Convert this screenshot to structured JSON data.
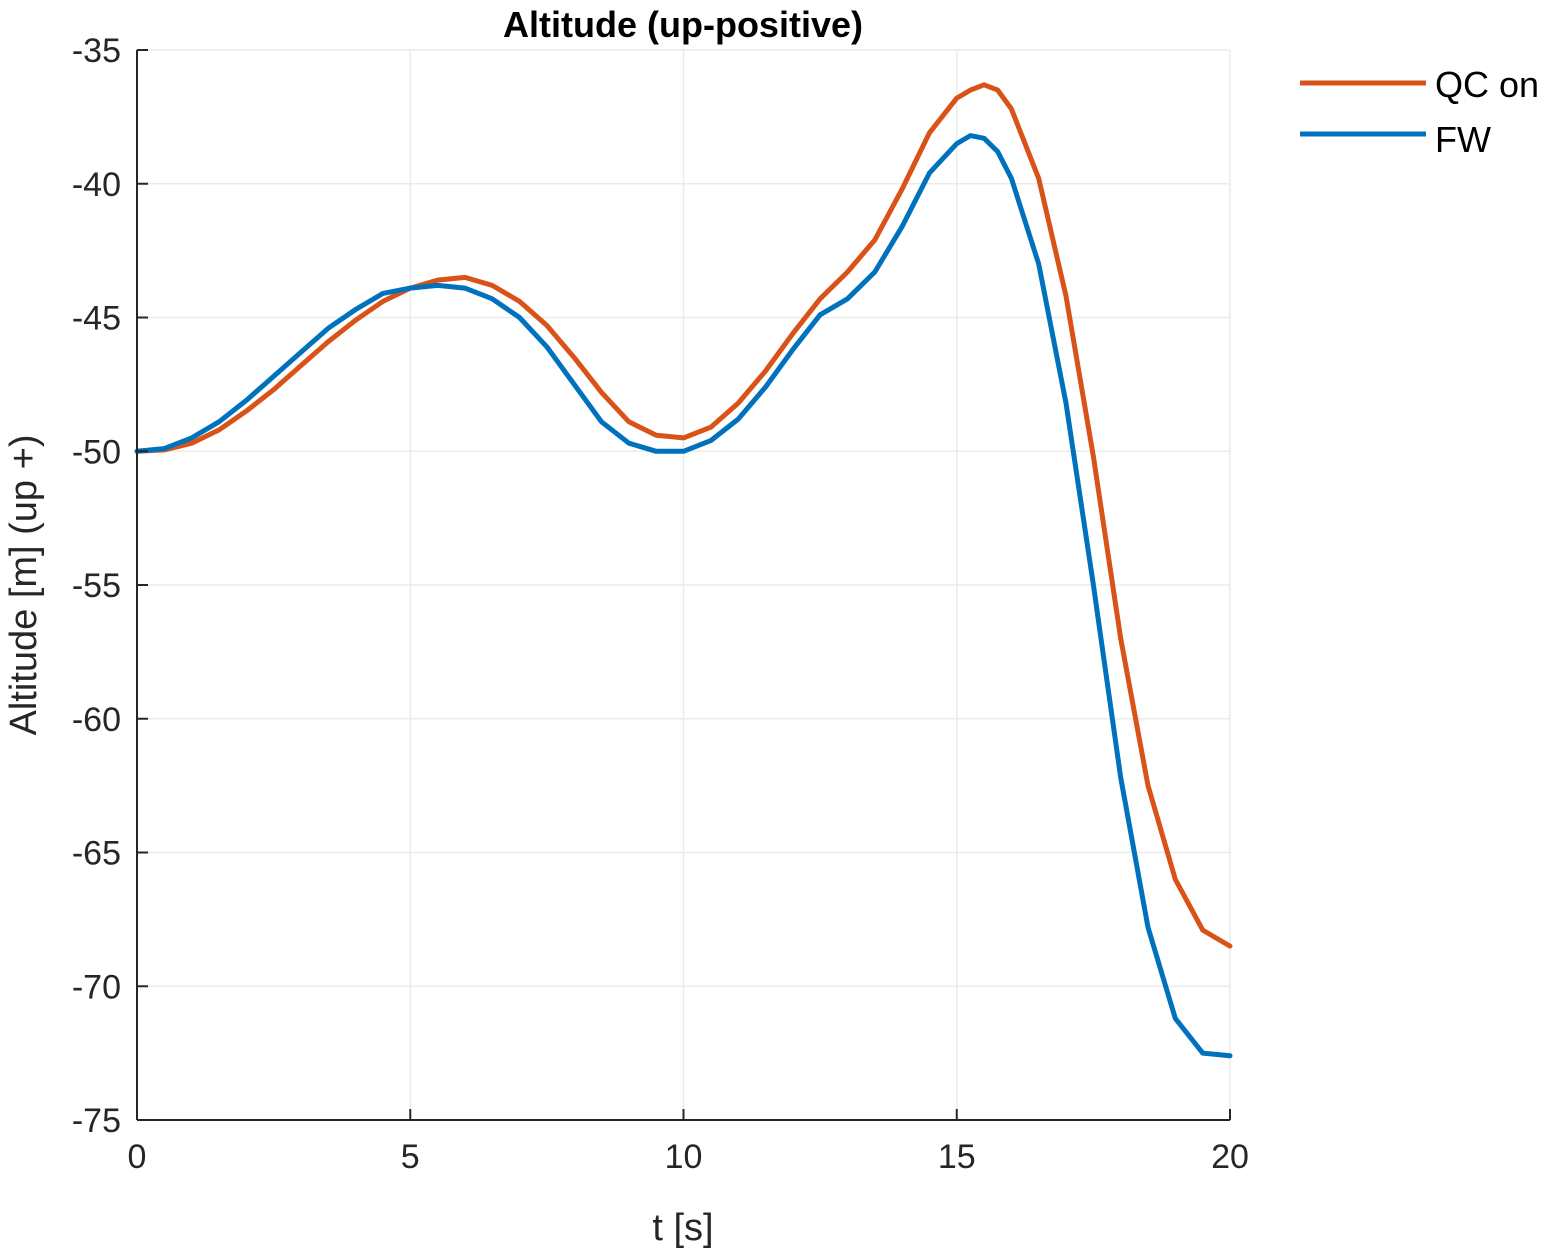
{
  "chart_data": {
    "type": "line",
    "title": "Altitude (up-positive)",
    "xlabel": "t [s]",
    "ylabel": "Altitude [m] (up +)",
    "xlim": [
      0,
      20
    ],
    "ylim": [
      -75,
      -35
    ],
    "xticks": [
      0,
      5,
      10,
      15,
      20
    ],
    "yticks": [
      -35,
      -40,
      -45,
      -50,
      -55,
      -60,
      -65,
      -70,
      -75
    ],
    "grid": true,
    "legend_position": "top-right, outside axes",
    "series": [
      {
        "name": "QC on",
        "color": "#D95319",
        "x": [
          0,
          0.5,
          1,
          1.5,
          2,
          2.5,
          3,
          3.5,
          4,
          4.5,
          5,
          5.5,
          6,
          6.5,
          7,
          7.5,
          8,
          8.5,
          9,
          9.5,
          10,
          10.5,
          11,
          11.5,
          12,
          12.5,
          13,
          13.5,
          14,
          14.5,
          15,
          15.25,
          15.5,
          15.75,
          16,
          16.5,
          17,
          17.5,
          18,
          18.5,
          19,
          19.5,
          20
        ],
        "y": [
          -50,
          -49.95,
          -49.7,
          -49.2,
          -48.5,
          -47.7,
          -46.8,
          -45.9,
          -45.1,
          -44.4,
          -43.9,
          -43.6,
          -43.5,
          -43.8,
          -44.4,
          -45.3,
          -46.5,
          -47.8,
          -48.9,
          -49.4,
          -49.5,
          -49.1,
          -48.2,
          -47.0,
          -45.6,
          -44.3,
          -43.3,
          -42.1,
          -40.2,
          -38.1,
          -36.8,
          -36.5,
          -36.3,
          -36.5,
          -37.2,
          -39.8,
          -44.2,
          -50.2,
          -57.0,
          -62.5,
          -66.0,
          -67.9,
          -68.5
        ]
      },
      {
        "name": "FW",
        "color": "#0072BD",
        "x": [
          0,
          0.5,
          1,
          1.5,
          2,
          2.5,
          3,
          3.5,
          4,
          4.5,
          5,
          5.5,
          6,
          6.5,
          7,
          7.5,
          8,
          8.5,
          9,
          9.5,
          10,
          10.5,
          11,
          11.5,
          12,
          12.5,
          13,
          13.5,
          14,
          14.5,
          15,
          15.25,
          15.5,
          15.75,
          16,
          16.5,
          17,
          17.5,
          18,
          18.5,
          19,
          19.5,
          20
        ],
        "y": [
          -50,
          -49.9,
          -49.5,
          -48.9,
          -48.1,
          -47.2,
          -46.3,
          -45.4,
          -44.7,
          -44.1,
          -43.9,
          -43.8,
          -43.9,
          -44.3,
          -45.0,
          -46.1,
          -47.5,
          -48.9,
          -49.7,
          -50.0,
          -50.0,
          -49.6,
          -48.8,
          -47.6,
          -46.2,
          -44.9,
          -44.3,
          -43.3,
          -41.6,
          -39.6,
          -38.5,
          -38.2,
          -38.3,
          -38.8,
          -39.8,
          -43.0,
          -48.2,
          -55.0,
          -62.2,
          -67.8,
          -71.2,
          -72.5,
          -72.6
        ]
      }
    ]
  }
}
